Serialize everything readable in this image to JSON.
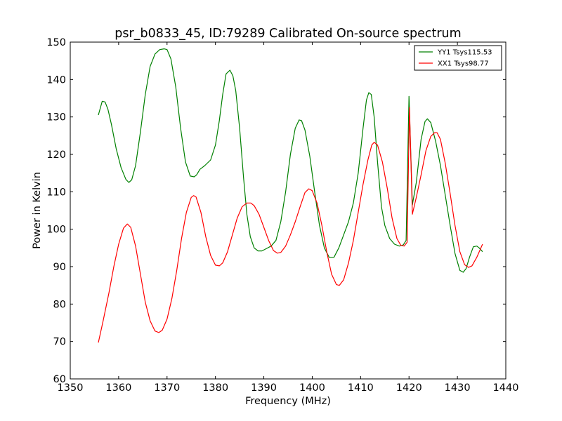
{
  "chart_data": {
    "type": "line",
    "title": "psr_b0833_45, ID:79289 Calibrated On-source spectrum",
    "xlabel": "Frequency (MHz)",
    "ylabel": "Power in Kelvin",
    "xlim": [
      1350,
      1440
    ],
    "ylim": [
      60,
      150
    ],
    "xticks": [
      "1350",
      "1360",
      "1370",
      "1380",
      "1390",
      "1400",
      "1410",
      "1420",
      "1430",
      "1440"
    ],
    "yticks": [
      "60",
      "70",
      "80",
      "90",
      "100",
      "110",
      "120",
      "130",
      "140",
      "150"
    ],
    "grid": false,
    "legend_position": "top-right",
    "series": [
      {
        "name": "YY1 Tsys115.53",
        "color": "#008000",
        "x": [
          1355.8,
          1356.6,
          1357.2,
          1357.8,
          1358.5,
          1359.5,
          1360.5,
          1361.5,
          1362.1,
          1362.7,
          1363.5,
          1364.5,
          1365.5,
          1366.5,
          1367.5,
          1368.5,
          1369.4,
          1370.0,
          1370.8,
          1371.8,
          1372.8,
          1373.8,
          1374.8,
          1375.6,
          1376.1,
          1376.8,
          1377.8,
          1379.0,
          1380.0,
          1380.8,
          1381.5,
          1382.2,
          1383.0,
          1383.6,
          1384.2,
          1385.0,
          1385.8,
          1386.5,
          1387.2,
          1388.0,
          1388.8,
          1389.6,
          1390.5,
          1391.5,
          1392.5,
          1393.5,
          1394.5,
          1395.5,
          1396.5,
          1397.3,
          1397.8,
          1398.5,
          1399.5,
          1400.5,
          1401.5,
          1402.5,
          1403.5,
          1404.5,
          1405.5,
          1406.5,
          1407.5,
          1408.5,
          1409.5,
          1410.5,
          1411.2,
          1411.7,
          1412.2,
          1412.8,
          1413.5,
          1414.3,
          1415.0,
          1416.0,
          1417.0,
          1418.0,
          1418.8,
          1419.4,
          1420.0,
          1420.7,
          1421.5,
          1422.5,
          1423.3,
          1423.8,
          1424.5,
          1425.5,
          1426.5,
          1427.5,
          1428.5,
          1429.5,
          1430.5,
          1431.2,
          1431.8,
          1432.5,
          1433.3,
          1434.0,
          1434.5,
          1435.2
        ],
        "y": [
          130.5,
          134.2,
          134.0,
          132.0,
          128.0,
          121.5,
          116.5,
          113.3,
          112.5,
          113.2,
          117.0,
          126.0,
          136.0,
          143.5,
          146.8,
          148.0,
          148.2,
          148.0,
          145.5,
          138.0,
          127.0,
          118.0,
          114.2,
          114.0,
          114.5,
          116.0,
          117.0,
          118.5,
          122.5,
          129.0,
          136.0,
          141.5,
          142.5,
          141.0,
          137.0,
          127.0,
          114.0,
          104.0,
          98.0,
          95.0,
          94.2,
          94.2,
          94.8,
          95.5,
          97.0,
          102.0,
          110.0,
          120.0,
          127.0,
          129.2,
          129.0,
          126.5,
          119.5,
          110.0,
          101.0,
          95.0,
          92.5,
          92.5,
          95.0,
          98.5,
          102.0,
          107.0,
          115.0,
          127.0,
          134.5,
          136.5,
          136.0,
          130.0,
          118.0,
          106.0,
          101.0,
          97.5,
          96.0,
          95.5,
          95.8,
          97.0,
          135.5,
          106.5,
          112.5,
          124.0,
          128.8,
          129.5,
          128.5,
          123.5,
          117.0,
          109.0,
          101.0,
          93.5,
          89.0,
          88.5,
          89.5,
          92.5,
          95.3,
          95.5,
          95.0,
          94.0
        ]
      },
      {
        "name": "XX1 Tsys98.77",
        "color": "#ff0000",
        "x": [
          1355.8,
          1356.8,
          1358.0,
          1359.0,
          1360.0,
          1361.0,
          1361.8,
          1362.5,
          1363.5,
          1364.5,
          1365.5,
          1366.5,
          1367.5,
          1368.3,
          1369.0,
          1370.0,
          1371.0,
          1372.0,
          1373.0,
          1374.0,
          1375.0,
          1375.5,
          1376.0,
          1377.0,
          1378.0,
          1379.0,
          1380.0,
          1380.8,
          1381.5,
          1382.5,
          1383.5,
          1384.5,
          1385.5,
          1386.5,
          1387.3,
          1388.0,
          1389.0,
          1390.0,
          1391.0,
          1392.0,
          1392.8,
          1393.5,
          1394.5,
          1395.5,
          1396.5,
          1397.5,
          1398.5,
          1399.3,
          1400.0,
          1401.0,
          1402.0,
          1403.0,
          1404.0,
          1405.0,
          1405.6,
          1406.5,
          1407.5,
          1408.5,
          1409.5,
          1410.5,
          1411.5,
          1412.3,
          1412.8,
          1413.5,
          1414.5,
          1415.5,
          1416.5,
          1417.5,
          1418.3,
          1419.0,
          1419.6,
          1420.1,
          1420.7,
          1421.5,
          1422.5,
          1423.5,
          1424.5,
          1425.3,
          1425.8,
          1426.5,
          1427.5,
          1428.5,
          1429.5,
          1430.5,
          1431.5,
          1432.3,
          1433.0,
          1434.0,
          1435.2
        ],
        "y": [
          69.7,
          75.5,
          83.0,
          90.0,
          96.0,
          100.3,
          101.4,
          100.5,
          95.5,
          88.0,
          80.5,
          75.5,
          72.8,
          72.4,
          73.0,
          76.0,
          81.5,
          89.0,
          97.5,
          104.5,
          108.5,
          109.0,
          108.6,
          104.5,
          98.0,
          93.0,
          90.4,
          90.2,
          91.0,
          94.0,
          98.5,
          103.0,
          106.0,
          107.0,
          107.0,
          106.3,
          104.0,
          100.5,
          97.0,
          94.3,
          93.6,
          93.8,
          95.5,
          98.5,
          102.0,
          106.0,
          109.8,
          110.8,
          110.3,
          107.0,
          101.0,
          94.0,
          88.0,
          85.2,
          85.0,
          86.5,
          91.0,
          97.0,
          104.5,
          112.0,
          118.5,
          122.5,
          123.2,
          122.5,
          118.0,
          111.0,
          103.0,
          97.5,
          95.7,
          95.5,
          96.5,
          132.5,
          104.0,
          108.5,
          114.5,
          121.0,
          124.8,
          125.8,
          125.8,
          124.0,
          117.5,
          109.5,
          101.0,
          94.0,
          90.5,
          89.8,
          90.2,
          92.5,
          96.0
        ]
      }
    ]
  }
}
